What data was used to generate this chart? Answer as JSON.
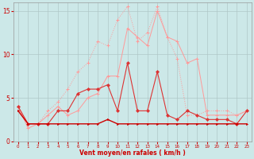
{
  "x": [
    0,
    1,
    2,
    3,
    4,
    5,
    6,
    7,
    8,
    9,
    10,
    11,
    12,
    13,
    14,
    15,
    16,
    17,
    18,
    19,
    20,
    21,
    22,
    23
  ],
  "line_gust": [
    4,
    2,
    2,
    2,
    3.5,
    3.5,
    5.5,
    6,
    6,
    6.5,
    3.5,
    9,
    3.5,
    3.5,
    8,
    3,
    2.5,
    3.5,
    3,
    2.5,
    2.5,
    2.5,
    2,
    3.5
  ],
  "line_avg": [
    3.5,
    2,
    2,
    2,
    2,
    2,
    2,
    2,
    2,
    2.5,
    2,
    2,
    2,
    2,
    2,
    2,
    2,
    2,
    2,
    2,
    2,
    2,
    2,
    2
  ],
  "line_light1": [
    4,
    1.5,
    2,
    3,
    4,
    3,
    3.5,
    5,
    5.5,
    7.5,
    7.5,
    13,
    12,
    11,
    15,
    12,
    11.5,
    9,
    9.5,
    3,
    3,
    3,
    3,
    3.5
  ],
  "line_light2": [
    4,
    2,
    2,
    3.5,
    4.5,
    6,
    8,
    9,
    11.5,
    11,
    14,
    15.5,
    11.5,
    12.5,
    15.5,
    12,
    9.5,
    3,
    3,
    3.5,
    3.5,
    3.5,
    3,
    3.5
  ],
  "bg_color": "#cce8e8",
  "grid_color": "#b0c8c8",
  "line_color_dark": "#cc0000",
  "line_color_light": "#ff9999",
  "line_color_med": "#dd3333",
  "ylabel_vals": [
    0,
    5,
    10,
    15
  ],
  "xlabel": "Vent moyen/en rafales ( km/h )",
  "ylim": [
    0,
    16
  ],
  "xlim": [
    -0.5,
    23.5
  ],
  "figsize": [
    3.2,
    2.0
  ],
  "dpi": 100
}
